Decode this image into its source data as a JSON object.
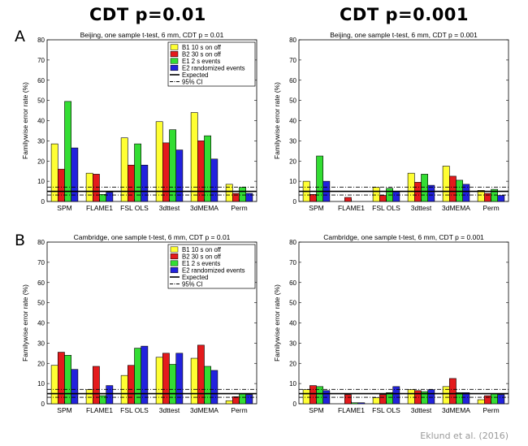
{
  "headings": {
    "col_left": "CDT p=0.01",
    "col_right": "CDT p=0.001",
    "row_a": "A",
    "row_b": "B",
    "citation": "Eklund et al. (2016)"
  },
  "colors": {
    "B1": "#ffff33",
    "B2": "#e41a1c",
    "E1": "#33dd33",
    "E2": "#2222dd"
  },
  "chart_data": [
    {
      "type": "bar",
      "title": "Beijing, one sample t-test, 6 mm, CDT p = 0.01",
      "ylabel": "Familywise error rate (%)",
      "ylim": [
        0,
        80
      ],
      "yticks": [
        0,
        10,
        20,
        30,
        40,
        50,
        60,
        70,
        80
      ],
      "categories": [
        "SPM",
        "FLAME1",
        "FSL OLS",
        "3dttest",
        "3dMEMA",
        "Perm"
      ],
      "series": [
        {
          "name": "B1 10 s on off",
          "values": [
            28.5,
            14,
            31.5,
            39.5,
            44,
            8.5
          ]
        },
        {
          "name": "B2 30 s on off",
          "values": [
            16,
            13.5,
            18,
            29,
            30,
            4
          ]
        },
        {
          "name": "E1 2 s events",
          "values": [
            49.5,
            3.5,
            28.5,
            35.5,
            32.5,
            7
          ]
        },
        {
          "name": "E2 randomized events",
          "values": [
            26.5,
            4.5,
            18,
            25.5,
            21,
            4
          ]
        }
      ],
      "reference_lines": {
        "expected": 5,
        "ci_lower": 3.2,
        "ci_upper": 7.1
      },
      "legend": {
        "placement": "top-right",
        "entries": [
          "B1 10 s on off",
          "B2 30 s on off",
          "E1 2 s events",
          "E2 randomized events",
          "Expected",
          "95% CI"
        ]
      }
    },
    {
      "type": "bar",
      "title": "Beijing, one sample t-test, 6 mm, CDT p = 0.001",
      "ylabel": "Familywise error rate (%)",
      "ylim": [
        0,
        80
      ],
      "yticks": [
        0,
        10,
        20,
        30,
        40,
        50,
        60,
        70,
        80
      ],
      "categories": [
        "SPM",
        "FLAME1",
        "FSL OLS",
        "3dttest",
        "3dMEMA",
        "Perm"
      ],
      "series": [
        {
          "name": "B1 10 s on off",
          "values": [
            10,
            0,
            7,
            14,
            17.5,
            5.5
          ]
        },
        {
          "name": "B2 30 s on off",
          "values": [
            3.5,
            2,
            3,
            9.5,
            12.5,
            4
          ]
        },
        {
          "name": "E1 2 s events",
          "values": [
            22.5,
            0,
            6.5,
            13.5,
            10.5,
            6
          ]
        },
        {
          "name": "E2 randomized events",
          "values": [
            10,
            0,
            5,
            8,
            8.5,
            3
          ]
        }
      ],
      "reference_lines": {
        "expected": 5,
        "ci_lower": 3.2,
        "ci_upper": 7.1
      }
    },
    {
      "type": "bar",
      "title": "Cambridge, one sample t-test, 6 mm, CDT p = 0.01",
      "ylabel": "Familywise error rate (%)",
      "ylim": [
        0,
        80
      ],
      "yticks": [
        0,
        10,
        20,
        30,
        40,
        50,
        60,
        70,
        80
      ],
      "categories": [
        "SPM",
        "FLAME1",
        "FSL OLS",
        "3dttest",
        "3dMEMA",
        "Perm"
      ],
      "series": [
        {
          "name": "B1 10 s on off",
          "values": [
            19,
            7,
            14,
            23,
            22.5,
            1.5
          ]
        },
        {
          "name": "B2 30 s on off",
          "values": [
            25.5,
            18.5,
            19,
            25,
            29,
            3.5
          ]
        },
        {
          "name": "E1 2 s events",
          "values": [
            24,
            4,
            27.5,
            19.5,
            18.5,
            5
          ]
        },
        {
          "name": "E2 randomized events",
          "values": [
            17,
            9,
            28.5,
            25,
            16.5,
            4.5
          ]
        }
      ],
      "reference_lines": {
        "expected": 5,
        "ci_lower": 3.2,
        "ci_upper": 7.1
      },
      "legend": {
        "placement": "top-right",
        "entries": [
          "B1 10 s on off",
          "B2 30 s on off",
          "E1 2 s events",
          "E2 randomized events",
          "Expected",
          "95% CI"
        ]
      }
    },
    {
      "type": "bar",
      "title": "Cambridge, one sample t-test, 6 mm, CDT p = 0.001",
      "ylabel": "Familywise error rate (%)",
      "ylim": [
        0,
        80
      ],
      "yticks": [
        0,
        10,
        20,
        30,
        40,
        50,
        60,
        70,
        80
      ],
      "categories": [
        "SPM",
        "FLAME1",
        "FSL OLS",
        "3dttest",
        "3dMEMA",
        "Perm"
      ],
      "series": [
        {
          "name": "B1 10 s on off",
          "values": [
            7,
            0,
            3,
            7,
            8.5,
            2
          ]
        },
        {
          "name": "B2 30 s on off",
          "values": [
            9,
            4.5,
            4.5,
            6.5,
            12.5,
            4
          ]
        },
        {
          "name": "E1 2 s events",
          "values": [
            8.5,
            0.5,
            5.5,
            6,
            5.5,
            5
          ]
        },
        {
          "name": "E2 randomized events",
          "values": [
            6.5,
            0.5,
            8.5,
            7,
            5.5,
            4.5
          ]
        }
      ],
      "reference_lines": {
        "expected": 5,
        "ci_lower": 3.2,
        "ci_upper": 7.1
      }
    }
  ]
}
